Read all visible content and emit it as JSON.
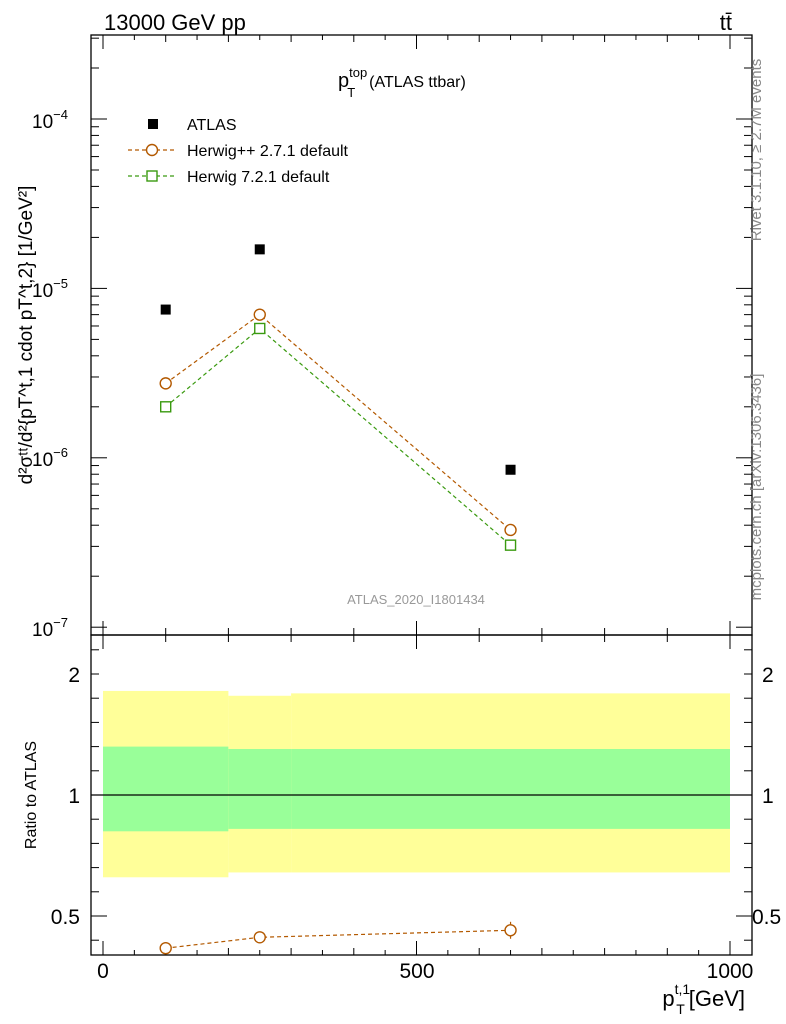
{
  "header": {
    "energy": "13000 GeV pp",
    "process": "tt̄",
    "title_main": "p",
    "title_sup": "top",
    "title_sub": "T",
    "title_suffix": "(ATLAS ttbar)",
    "analysis_id": "ATLAS_2020_I1801434",
    "side_rivet": "Rivet 3.1.10, ≥ 2.7M events",
    "side_mcplots": "mcplots.cern.ch [arXiv:1306.3436]"
  },
  "axes": {
    "y_main_label": "d²σᵗᵗ/d²{pT^t,1 cdot pT^t,2} [1/GeV²]",
    "y_ratio_label": "Ratio to ATLAS",
    "x_label_main": "p",
    "x_label_sup": "t,1",
    "x_label_sub": "T",
    "x_label_unit": "[GeV]",
    "y_main_ticks": [
      {
        "base": "10",
        "exp": "−4"
      },
      {
        "base": "10",
        "exp": "−5"
      },
      {
        "base": "10",
        "exp": "−6"
      },
      {
        "base": "10",
        "exp": "−7"
      }
    ],
    "ratio_ticks": [
      "2",
      "1",
      "0.5"
    ],
    "x_ticks": [
      "0",
      "500",
      "1000"
    ]
  },
  "legend": {
    "atlas": "ATLAS",
    "herwigpp": "Herwig++ 2.7.1 default",
    "herwig7": "Herwig 7.2.1 default"
  },
  "colors": {
    "atlas": "#000000",
    "herwigpp": "#b35900",
    "herwig7": "#3a9a10",
    "band_inner": "#99ff99",
    "band_outer": "#ffff99"
  },
  "chart_data": {
    "type": "scatter",
    "x_range": [
      0,
      1000
    ],
    "main_y_range": [
      8e-08,
      0.00033
    ],
    "main_y_scale": "log",
    "ratio_y_range": [
      0.35,
      2.3
    ],
    "series": [
      {
        "name": "ATLAS",
        "x": [
          100,
          250,
          650
        ],
        "y": [
          7.5e-06,
          1.7e-05,
          8.5e-07
        ]
      },
      {
        "name": "Herwig++ 2.7.1 default",
        "x": [
          100,
          250,
          650
        ],
        "y": [
          2.75e-06,
          7e-06,
          3.75e-07
        ],
        "ratio": [
          0.367,
          0.412,
          0.441
        ],
        "ratio_err": [
          0,
          0.015,
          0.035
        ]
      },
      {
        "name": "Herwig 7.2.1 default",
        "x": [
          100,
          250,
          650
        ],
        "y": [
          2e-06,
          5.8e-06,
          3.05e-07
        ]
      }
    ],
    "ratio_bands": [
      {
        "x": [
          0,
          200
        ],
        "inner": [
          0.85,
          1.2
        ],
        "outer": [
          0.66,
          1.43
        ]
      },
      {
        "x": [
          200,
          300
        ],
        "inner": [
          0.86,
          1.19
        ],
        "outer": [
          0.68,
          1.41
        ]
      },
      {
        "x": [
          300,
          1000
        ],
        "inner": [
          0.86,
          1.19
        ],
        "outer": [
          0.68,
          1.42
        ]
      }
    ]
  }
}
